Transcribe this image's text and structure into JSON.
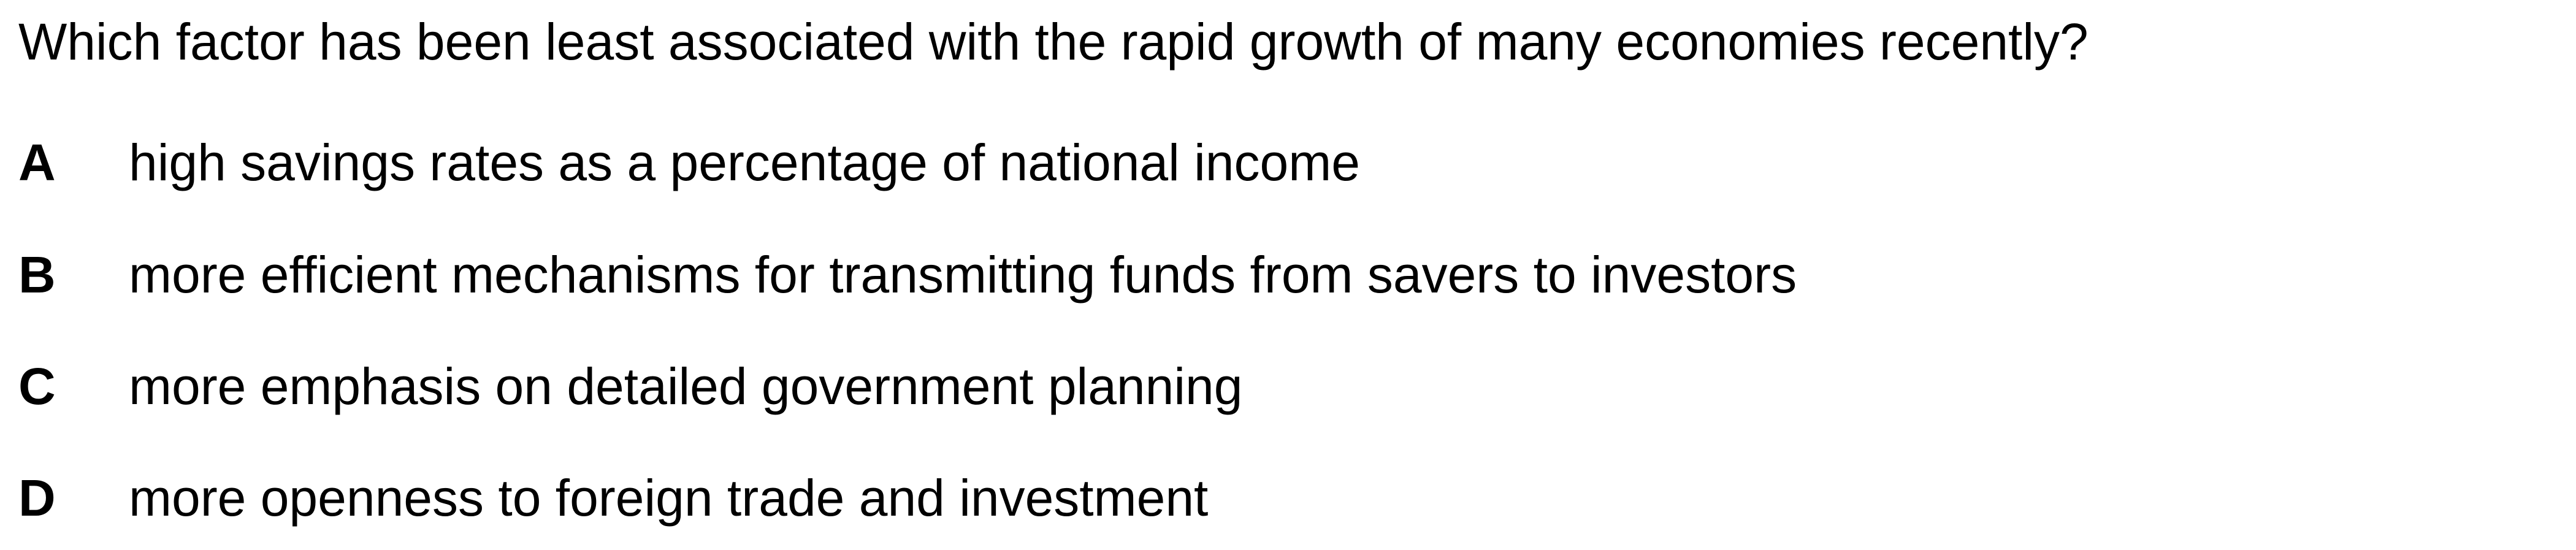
{
  "question": {
    "text": "Which factor has been least associated with the rapid growth of many economies recently?"
  },
  "options": [
    {
      "letter": "A",
      "text": "high savings rates as a percentage of national income"
    },
    {
      "letter": "B",
      "text": "more efficient mechanisms for transmitting funds from savers to investors"
    },
    {
      "letter": "C",
      "text": "more emphasis on detailed government planning"
    },
    {
      "letter": "D",
      "text": "more openness to foreign trade and investment"
    }
  ]
}
